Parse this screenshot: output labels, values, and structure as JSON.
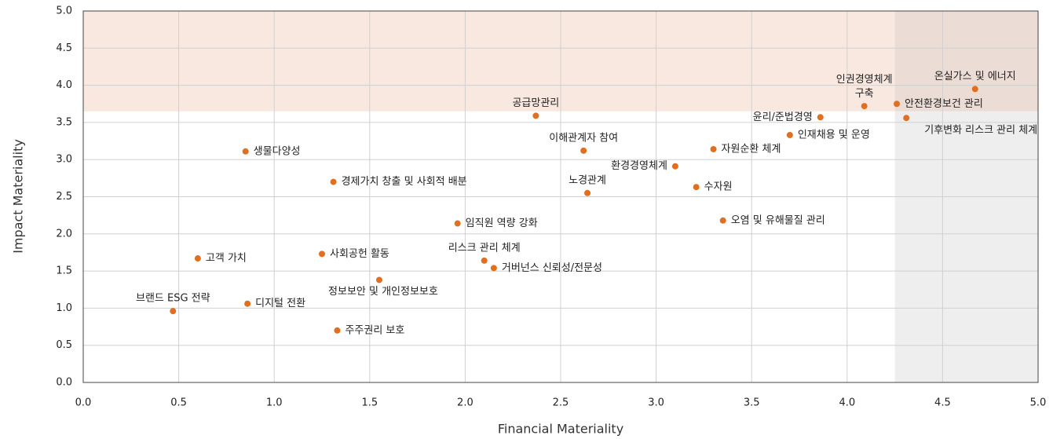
{
  "chart_data": {
    "type": "scatter",
    "xlabel": "Financial Materiality",
    "ylabel": "Impact Materiality",
    "color": "#e07020",
    "highlight": {
      "x_from": 4.25,
      "y_from": 3.65,
      "y_color": "#f9e8e0",
      "x_color": "#eeeeee",
      "both_color": "#ecdcd6"
    },
    "labels": [
      "생물다양성",
      "경제가치 창출 및 사회적 배분",
      "고객 가치",
      "사회공헌 활동",
      "브랜드 ESG 전략",
      "디지털 전환",
      "주주권리 보호",
      "정보보안 및 개인정보보호",
      "임직원 역량 강화",
      "리스크 관리 체계",
      "거버넌스 신뢰성/전문성",
      "공급망관리",
      "이해관계자 참여",
      "노경관계",
      "환경경영체계",
      "수자원",
      "자원순환 체계",
      "오염 및 유해물질 관리",
      "윤리/준법경영",
      "인재채용 및 운영",
      "인권경영체계 구축",
      "안전환경보건 관리",
      "기후변화 리스크 관리 체계",
      "온실가스 및 에너지"
    ],
    "x": [
      0.85,
      1.31,
      0.6,
      1.25,
      0.47,
      0.86,
      1.33,
      1.55,
      1.96,
      2.1,
      2.15,
      2.37,
      2.62,
      2.64,
      3.1,
      3.21,
      3.3,
      3.35,
      3.86,
      3.7,
      4.09,
      4.26,
      4.31,
      4.67
    ],
    "values": [
      3.11,
      2.7,
      1.67,
      1.73,
      0.96,
      1.06,
      0.7,
      1.38,
      2.14,
      1.64,
      1.54,
      3.59,
      3.12,
      2.55,
      2.91,
      2.63,
      3.14,
      2.18,
      3.57,
      3.33,
      3.72,
      3.75,
      3.56,
      3.95
    ],
    "xlim": [
      0,
      5
    ],
    "ylim": [
      0,
      5
    ],
    "xticks": [
      {
        "value": 0,
        "label": "0.0"
      },
      {
        "value": 0.5,
        "label": "0.5"
      },
      {
        "value": 1,
        "label": "1.0"
      },
      {
        "value": 1.5,
        "label": "1.5"
      },
      {
        "value": 2,
        "label": "2.0"
      },
      {
        "value": 2.5,
        "label": "2.5"
      },
      {
        "value": 3,
        "label": "3.0"
      },
      {
        "value": 3.5,
        "label": "3.5"
      },
      {
        "value": 4,
        "label": "4.0"
      },
      {
        "value": 4.5,
        "label": "4.5"
      },
      {
        "value": 5,
        "label": "5.0"
      }
    ],
    "yticks": [
      {
        "value": 0,
        "label": "0.0"
      },
      {
        "value": 0.5,
        "label": "0.5"
      },
      {
        "value": 1,
        "label": "1.0"
      },
      {
        "value": 1.5,
        "label": "1.5"
      },
      {
        "value": 2,
        "label": "2.0"
      },
      {
        "value": 2.5,
        "label": "2.5"
      },
      {
        "value": 3,
        "label": "3.0"
      },
      {
        "value": 3.5,
        "label": "3.5"
      },
      {
        "value": 4,
        "label": "4.0"
      },
      {
        "value": 4.5,
        "label": "4.5"
      },
      {
        "value": 5,
        "label": "5.0"
      }
    ],
    "grid": true
  }
}
